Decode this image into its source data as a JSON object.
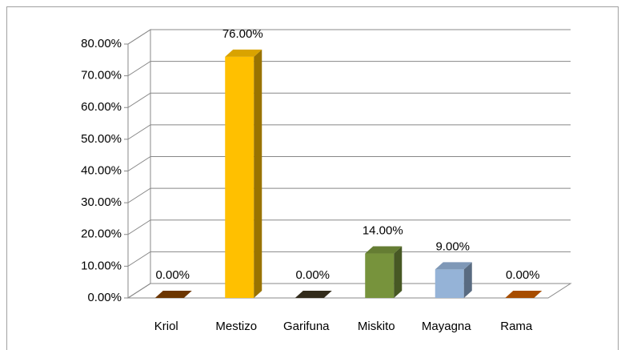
{
  "chart_data": {
    "type": "bar3d",
    "categories": [
      "Kriol",
      "Mestizo",
      "Garifuna",
      "Miskito",
      "Mayagna",
      "Rama"
    ],
    "values": [
      0,
      76,
      0,
      14,
      9,
      0
    ],
    "value_labels": [
      "0.00%",
      "76.00%",
      "0.00%",
      "14.00%",
      "9.00%",
      "0.00%"
    ],
    "colors": [
      "#7f3f00",
      "#ffc000",
      "#3b3320",
      "#77933c",
      "#95b3d7",
      "#c55a00"
    ],
    "ylim": [
      0,
      80
    ],
    "yticks": [
      {
        "value": 0,
        "label": "0.00%"
      },
      {
        "value": 10,
        "label": "10.00%"
      },
      {
        "value": 20,
        "label": "20.00%"
      },
      {
        "value": 30,
        "label": "30.00%"
      },
      {
        "value": 40,
        "label": "40.00%"
      },
      {
        "value": 50,
        "label": "50.00%"
      },
      {
        "value": 60,
        "label": "60.00%"
      },
      {
        "value": 70,
        "label": "70.00%"
      },
      {
        "value": 80,
        "label": "80.00%"
      }
    ],
    "grid": true
  }
}
